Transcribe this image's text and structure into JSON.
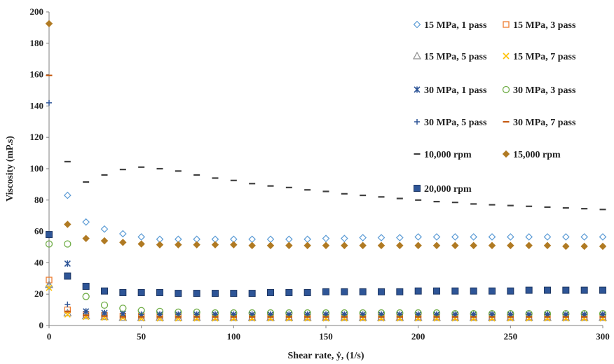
{
  "chart_data": {
    "type": "scatter",
    "xlabel": "Shear rate, ẏ, (1/s)",
    "ylabel": "Viscosity (mP.s)",
    "xlim": [
      0,
      300
    ],
    "ylim": [
      0,
      200
    ],
    "xticks": [
      "0",
      "50",
      "100",
      "150",
      "200",
      "250",
      "300"
    ],
    "yticks": [
      "0",
      "20",
      "40",
      "60",
      "80",
      "100",
      "120",
      "140",
      "160",
      "180",
      "200"
    ],
    "grid": false,
    "legend_position": "top-right",
    "x": [
      0,
      10,
      20,
      30,
      40,
      50,
      60,
      70,
      80,
      90,
      100,
      110,
      120,
      130,
      140,
      150,
      160,
      170,
      180,
      190,
      200,
      210,
      220,
      230,
      240,
      250,
      260,
      270,
      280,
      290,
      300
    ],
    "series": [
      {
        "name": "15 MPa, 1 pass",
        "marker": "diamond-open",
        "color": "#5b9bd5",
        "values": [
          25,
          83,
          66,
          61.5,
          58.5,
          56.5,
          55,
          55,
          55,
          55,
          55,
          55,
          55,
          55,
          55,
          55.5,
          55.5,
          56,
          56,
          56,
          56.5,
          56.5,
          56.5,
          56.5,
          56.5,
          56.5,
          56.5,
          56.5,
          56.5,
          56.5,
          56.5
        ]
      },
      {
        "name": "15 MPa, 3 pass",
        "marker": "square-open",
        "color": "#ed7d31",
        "values": [
          29,
          10,
          7,
          6.5,
          6,
          6,
          6,
          6,
          5.5,
          5.5,
          5.5,
          5.5,
          5.5,
          5.5,
          5.5,
          5.5,
          5.5,
          5.5,
          5.5,
          5.5,
          5.5,
          5.5,
          5.5,
          5.5,
          5.5,
          5.5,
          5.5,
          5.5,
          5.5,
          5.5,
          5.5
        ]
      },
      {
        "name": "15 MPa, 5 pass",
        "marker": "triangle-open",
        "color": "#8c8c8c",
        "values": [
          26,
          8,
          6,
          5.5,
          5,
          5,
          5,
          5,
          5,
          5,
          5,
          5,
          5,
          5,
          5,
          5,
          5,
          5,
          5,
          5,
          5,
          5,
          5,
          5,
          5,
          5,
          5,
          5,
          5,
          5,
          5
        ]
      },
      {
        "name": "15 MPa, 7 pass",
        "marker": "x",
        "color": "#ffc000",
        "values": [
          24,
          7,
          5.5,
          5,
          5,
          4.5,
          4.5,
          4.5,
          4.5,
          4.5,
          4.5,
          4.5,
          4.5,
          4.5,
          4.5,
          4.5,
          4.5,
          4.5,
          4.5,
          4.5,
          4.5,
          4.5,
          4.5,
          4.5,
          4.5,
          4.5,
          4.5,
          4.5,
          4.5,
          4.5,
          4.5
        ]
      },
      {
        "name": "30 MPa, 1 pass",
        "marker": "asterisk",
        "color": "#2e5597",
        "values": [
          58,
          39.5,
          9,
          8,
          7.5,
          7,
          7,
          7,
          7,
          7,
          7,
          7,
          7,
          7,
          7,
          7,
          7,
          7,
          7,
          7,
          7,
          7,
          7,
          7,
          7,
          7,
          7,
          7,
          7,
          7,
          7
        ]
      },
      {
        "name": "30 MPa, 3 pass",
        "marker": "circle-open",
        "color": "#70ad47",
        "values": [
          52,
          52,
          18.5,
          13,
          11,
          9.5,
          9,
          8.5,
          8.5,
          8,
          8,
          8,
          8,
          8,
          8,
          8,
          8,
          8,
          8,
          8,
          8,
          8,
          7.5,
          7.5,
          7.5,
          7.5,
          7.5,
          7.5,
          7.5,
          7.5,
          7.5
        ]
      },
      {
        "name": "30 MPa, 5 pass",
        "marker": "plus",
        "color": "#2e5597",
        "values": [
          142,
          13.5,
          9,
          8,
          7.5,
          7,
          7,
          7,
          7,
          7,
          7,
          7,
          7,
          7,
          7,
          7,
          7,
          7,
          7,
          7,
          7,
          7,
          7,
          7,
          7,
          7,
          7,
          7,
          7,
          7,
          7
        ]
      },
      {
        "name": "30 MPa, 7 pass",
        "marker": "dash",
        "color": "#c55a11",
        "values": [
          159.5,
          9,
          6.5,
          6,
          5.5,
          5.5,
          5.5,
          5.5,
          5.5,
          5.5,
          5.5,
          5.5,
          5.5,
          5.5,
          5.5,
          5.5,
          5.5,
          5.5,
          5.5,
          5.5,
          5.5,
          5.5,
          5.5,
          5.5,
          5.5,
          5.5,
          5.5,
          5.5,
          5.5,
          5.5,
          5.5
        ]
      },
      {
        "name": "10,000 rpm",
        "marker": "dash",
        "color": "#404040",
        "values": [
          null,
          104.5,
          91.5,
          96,
          99.5,
          101,
          100,
          98.5,
          96,
          94,
          92.5,
          90.5,
          89,
          88,
          86.5,
          85.5,
          84,
          83,
          82,
          81,
          80,
          79,
          78.5,
          77.5,
          77,
          76.5,
          76,
          75.5,
          75,
          74.5,
          74
        ]
      },
      {
        "name": "15,000 rpm",
        "marker": "diamond-filled",
        "color": "#b07a23",
        "values": [
          192.5,
          64.5,
          55.5,
          54,
          53,
          52,
          51.5,
          51.5,
          51.5,
          51.5,
          51.5,
          51,
          51,
          51,
          51,
          51,
          51,
          51,
          51,
          51,
          51,
          51,
          51,
          51,
          51,
          51,
          51,
          51,
          50.5,
          50.5,
          50.5
        ]
      },
      {
        "name": "20,000 rpm",
        "marker": "square-filled",
        "color": "#2e5597",
        "values": [
          58,
          31.5,
          25,
          22,
          21,
          21,
          21,
          20.5,
          20.5,
          20.5,
          20.5,
          20.5,
          21,
          21,
          21,
          21.5,
          21.5,
          21.5,
          21.5,
          21.5,
          22,
          22,
          22,
          22,
          22,
          22,
          22.5,
          22.5,
          22.5,
          22.5,
          22.5
        ]
      }
    ]
  }
}
